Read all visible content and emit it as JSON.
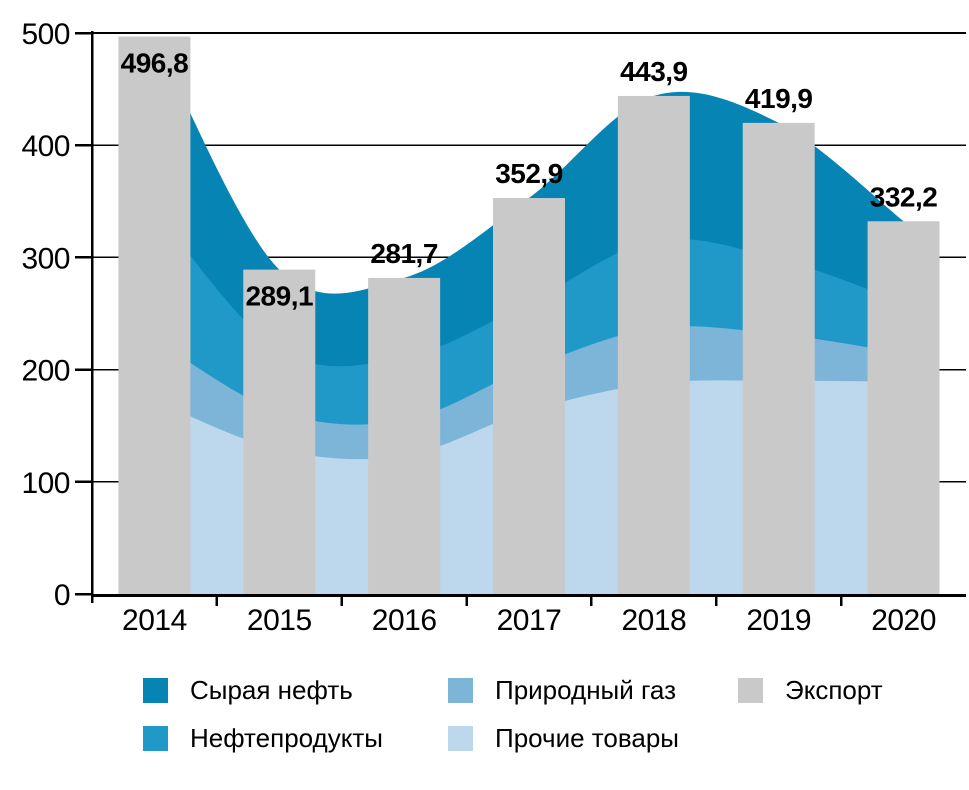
{
  "chart_data": {
    "type": "area",
    "subtype": "stacked-areas-with-total-bars",
    "title": "",
    "xlabel": "",
    "ylabel": "",
    "categories": [
      "2014",
      "2015",
      "2016",
      "2017",
      "2018",
      "2019",
      "2020"
    ],
    "y_ticks": [
      0,
      100,
      200,
      300,
      400,
      500
    ],
    "y_tick_labels": [
      "0",
      "100",
      "200",
      "300",
      "400",
      "500"
    ],
    "ylim": [
      0,
      500
    ],
    "grid": true,
    "legend_position": "bottom",
    "series": [
      {
        "name": "Сырая нефть",
        "type": "area",
        "color": "#0684b4",
        "values": [
          153.9,
          72.0,
          71.0,
          93.3,
          129.0,
          121.4,
          72.4
        ]
      },
      {
        "name": "Нефтепродукты",
        "type": "area",
        "color": "#2099c8",
        "values": [
          115.6,
          55.0,
          56.0,
          58.2,
          78.1,
          66.9,
          45.4
        ]
      },
      {
        "name": "Природный газ",
        "type": "area",
        "color": "#7cb5d8",
        "values": [
          54.7,
          33.5,
          31.5,
          38.1,
          49.1,
          41.6,
          25.2
        ]
      },
      {
        "name": "Прочие товары",
        "type": "area",
        "color": "#bdd7ec",
        "values": [
          172.6,
          128.6,
          123.2,
          163.3,
          187.7,
          190.0,
          189.2
        ]
      },
      {
        "name": "Экспорт",
        "type": "bar",
        "color": "#c9c9c9",
        "values": [
          496.8,
          289.1,
          281.7,
          352.9,
          443.9,
          419.9,
          332.2
        ],
        "value_labels": [
          "496,8",
          "289,1",
          "281,7",
          "352,9",
          "443,9",
          "419,9",
          "332,2"
        ]
      }
    ],
    "stack_order_bottom_to_top": [
      "Прочие товары",
      "Природный газ",
      "Нефтепродукты",
      "Сырая нефть"
    ],
    "value_labels_inside_bar_for": [
      "2014",
      "2015"
    ]
  },
  "legend": {
    "columns": [
      {
        "items": [
          {
            "series_index": 0
          },
          {
            "series_index": 1
          }
        ]
      },
      {
        "items": [
          {
            "series_index": 2
          },
          {
            "series_index": 3
          }
        ]
      },
      {
        "items": [
          {
            "series_index": 4
          }
        ]
      }
    ]
  },
  "colors": {
    "axis": "#000000",
    "gridline": "#000000",
    "background": "#ffffff",
    "label_text": "#000000"
  }
}
